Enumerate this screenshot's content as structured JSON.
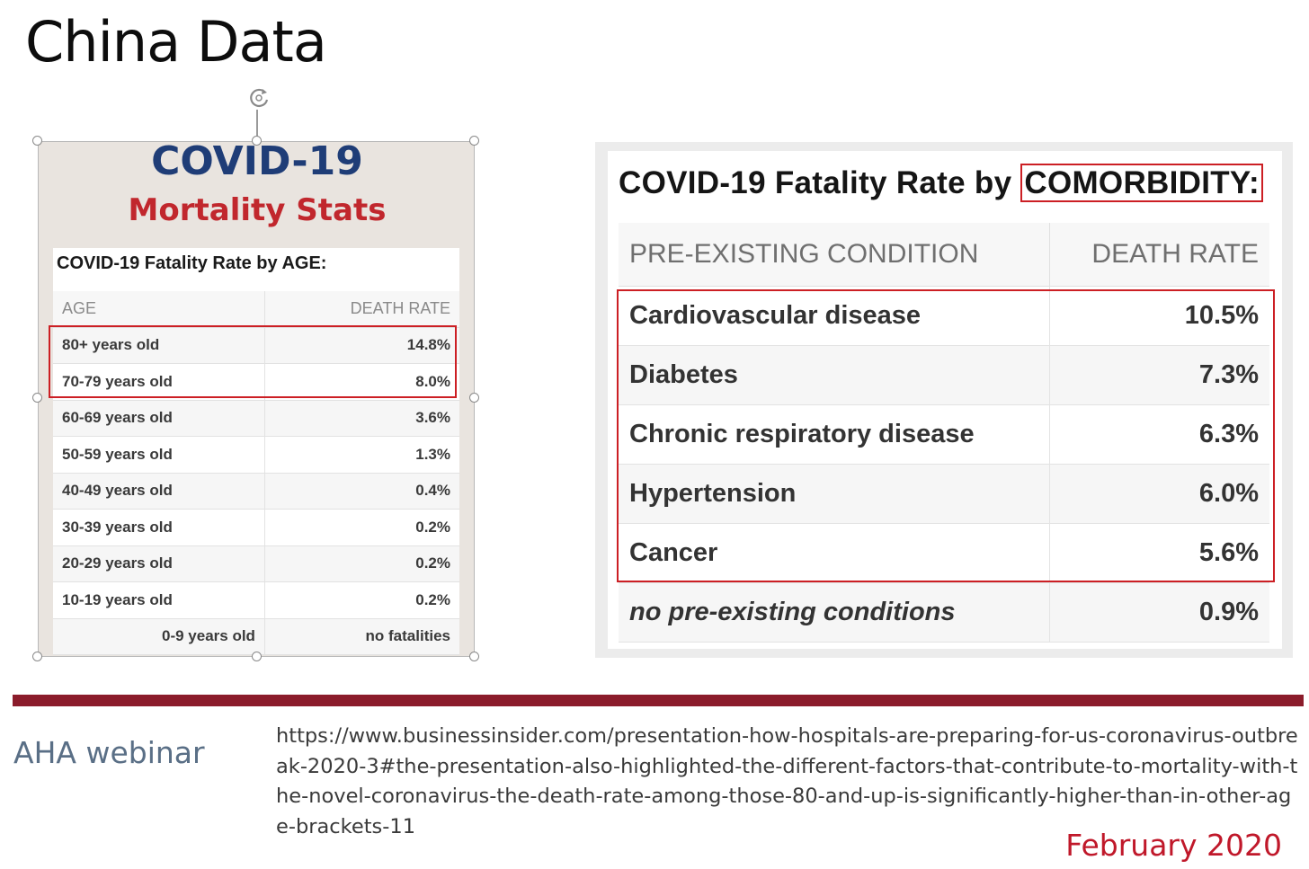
{
  "slide": {
    "title": "China Data"
  },
  "left_image": {
    "heading_line1": "COVID-19",
    "heading_line2": "Mortality Stats",
    "caption": "COVID-19 Fatality Rate by AGE:",
    "columns": [
      "AGE",
      "DEATH RATE"
    ],
    "rows": [
      {
        "age": "80+ years old",
        "rate": "14.8%"
      },
      {
        "age": "70-79 years old",
        "rate": "8.0%"
      },
      {
        "age": "60-69 years old",
        "rate": "3.6%"
      },
      {
        "age": "50-59 years old",
        "rate": "1.3%"
      },
      {
        "age": "40-49 years old",
        "rate": "0.4%"
      },
      {
        "age": "30-39 years old",
        "rate": "0.2%"
      },
      {
        "age": "20-29 years old",
        "rate": "0.2%"
      },
      {
        "age": "10-19 years old",
        "rate": "0.2%"
      },
      {
        "age": "0-9 years old",
        "rate": "no fatalities"
      }
    ]
  },
  "right_image": {
    "caption_prefix": "COVID-19 Fatality Rate by ",
    "caption_boxed": "COMORBIDITY:",
    "columns": [
      "PRE-EXISTING CONDITION",
      "DEATH RATE"
    ],
    "rows": [
      {
        "condition": "Cardiovascular disease",
        "rate": "10.5%"
      },
      {
        "condition": "Diabetes",
        "rate": "7.3%"
      },
      {
        "condition": "Chronic respiratory disease",
        "rate": "6.3%"
      },
      {
        "condition": "Hypertension",
        "rate": "6.0%"
      },
      {
        "condition": "Cancer",
        "rate": "5.6%"
      },
      {
        "condition": "no pre-existing conditions",
        "rate": "0.9%"
      }
    ]
  },
  "footer": {
    "source_label": "AHA webinar",
    "url": "https://www.businessinsider.com/presentation-how-hospitals-are-preparing-for-us-coronavirus-outbreak-2020-3#the-presentation-also-highlighted-the-different-factors-that-contribute-to-mortality-with-the-novel-coronavirus-the-death-rate-among-those-80-and-up-is-significantly-higher-than-in-other-age-brackets-11",
    "date": "February 2020"
  },
  "colors": {
    "accent_red": "#cc1f24",
    "divider": "#8b1c2b",
    "heading_blue": "#1f3d77",
    "footer_gray_blue": "#5a6f86"
  }
}
